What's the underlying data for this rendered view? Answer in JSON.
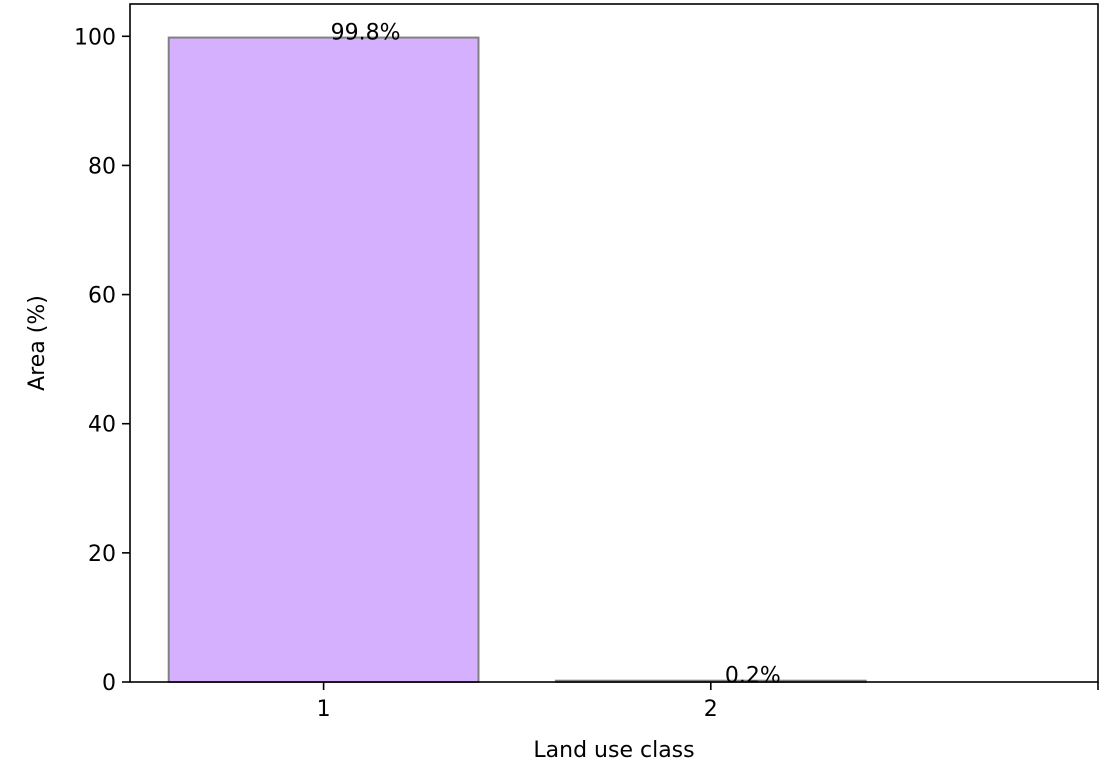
{
  "chart_data": {
    "type": "bar",
    "categories": [
      "1",
      "2"
    ],
    "values": [
      99.8,
      0.2
    ],
    "data_labels": [
      "99.8%",
      "0.2%"
    ],
    "xlabel": "Land use class",
    "ylabel": "Area (%)",
    "ylim": [
      0,
      105
    ],
    "yticks": [
      0,
      20,
      40,
      60,
      80,
      100
    ],
    "xlim": [
      0.5,
      3
    ],
    "extra_xtick_at": 3,
    "grid": false,
    "legend": "none",
    "bar_colors": [
      "#d4b0ff",
      "#d4b0ff"
    ],
    "bar_edge_color": "#808080"
  }
}
